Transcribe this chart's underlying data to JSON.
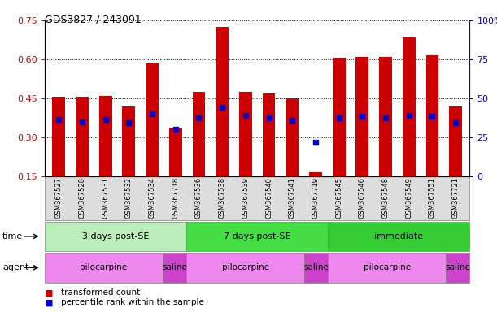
{
  "title": "GDS3827 / 243091",
  "samples": [
    "GSM367527",
    "GSM367528",
    "GSM367531",
    "GSM367532",
    "GSM367534",
    "GSM367718",
    "GSM367536",
    "GSM367538",
    "GSM367539",
    "GSM367540",
    "GSM367541",
    "GSM367719",
    "GSM367545",
    "GSM367546",
    "GSM367548",
    "GSM367549",
    "GSM367551",
    "GSM367721"
  ],
  "transformed_count": [
    0.455,
    0.455,
    0.458,
    0.42,
    0.585,
    0.335,
    0.475,
    0.725,
    0.475,
    0.47,
    0.45,
    0.165,
    0.605,
    0.61,
    0.61,
    0.685,
    0.615,
    0.42
  ],
  "percentile_rank": [
    0.37,
    0.36,
    0.37,
    0.355,
    0.39,
    0.33,
    0.375,
    0.415,
    0.385,
    0.375,
    0.365,
    0.28,
    0.375,
    0.38,
    0.375,
    0.385,
    0.38,
    0.355
  ],
  "bar_color": "#cc0000",
  "dot_color": "#0000cc",
  "ylim": [
    0.15,
    0.75
  ],
  "yticks_left": [
    0.15,
    0.3,
    0.45,
    0.6,
    0.75
  ],
  "yticks_right": [
    0,
    25,
    50,
    75,
    100
  ],
  "ylabel_left_color": "#cc0000",
  "ylabel_right_color": "#0000cc",
  "time_groups": [
    {
      "label": "3 days post-SE",
      "start": 0,
      "end": 5,
      "color": "#bbeebb"
    },
    {
      "label": "7 days post-SE",
      "start": 6,
      "end": 11,
      "color": "#44dd44"
    },
    {
      "label": "immediate",
      "start": 12,
      "end": 17,
      "color": "#33cc33"
    }
  ],
  "agent_groups": [
    {
      "label": "pilocarpine",
      "start": 0,
      "end": 4,
      "color": "#ee88ee"
    },
    {
      "label": "saline",
      "start": 5,
      "end": 5,
      "color": "#cc44cc"
    },
    {
      "label": "pilocarpine",
      "start": 6,
      "end": 10,
      "color": "#ee88ee"
    },
    {
      "label": "saline",
      "start": 11,
      "end": 11,
      "color": "#cc44cc"
    },
    {
      "label": "pilocarpine",
      "start": 12,
      "end": 16,
      "color": "#ee88ee"
    },
    {
      "label": "saline",
      "start": 17,
      "end": 17,
      "color": "#cc44cc"
    }
  ],
  "time_label": "time",
  "agent_label": "agent",
  "legend_items": [
    {
      "label": "transformed count",
      "color": "#cc0000"
    },
    {
      "label": "percentile rank within the sample",
      "color": "#0000cc"
    }
  ],
  "bar_width": 0.55,
  "dot_size": 18,
  "background_color": "#ffffff",
  "tick_bg_color": "#dddddd"
}
